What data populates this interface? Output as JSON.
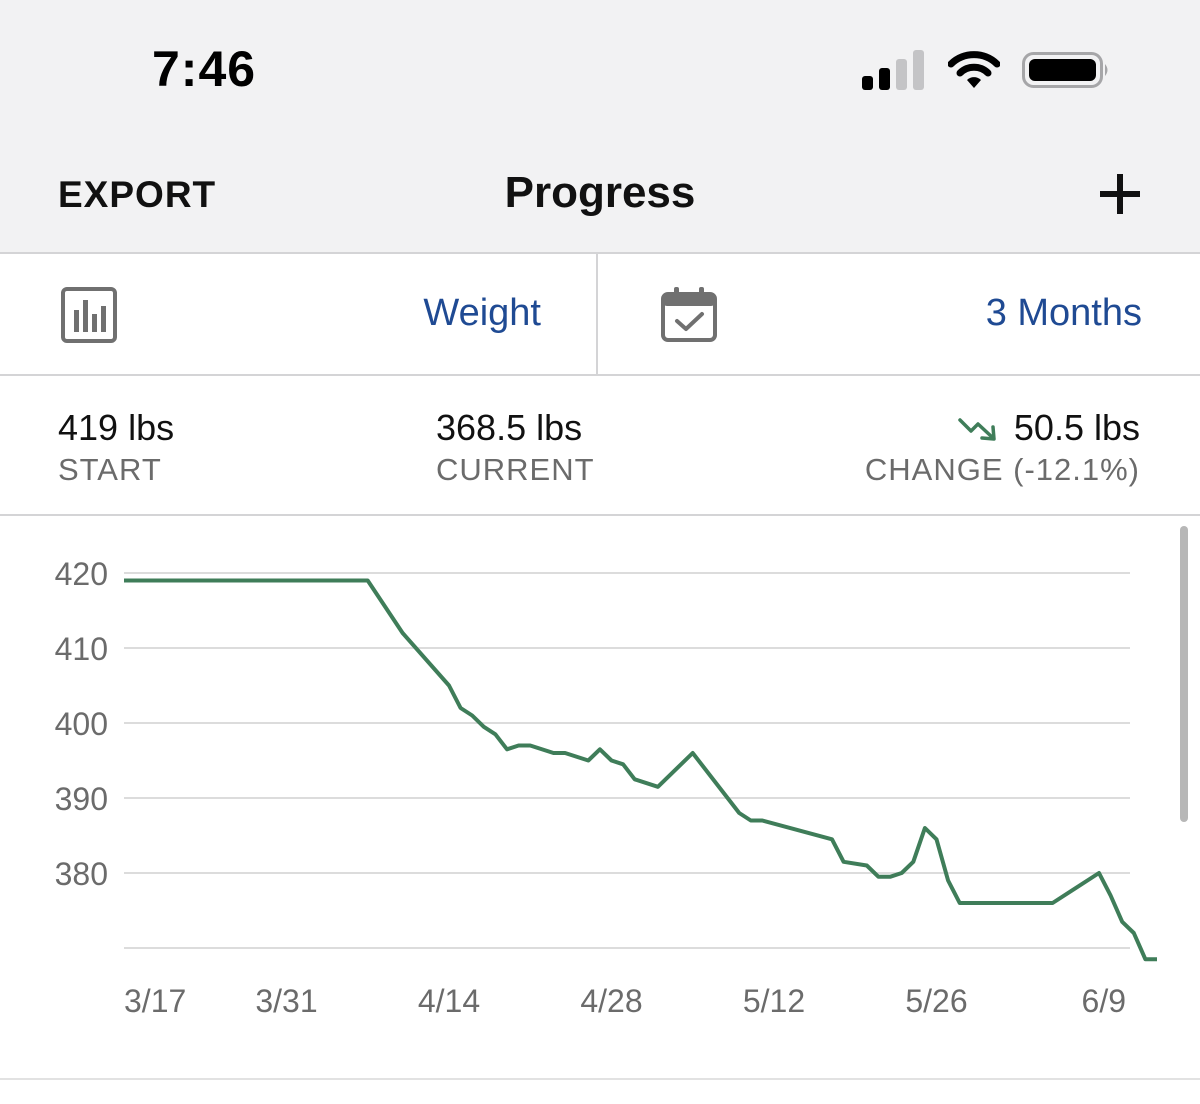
{
  "status_bar": {
    "time": "7:46",
    "icons": [
      "signal-icon",
      "wifi-icon",
      "battery-icon"
    ]
  },
  "nav": {
    "export_label": "EXPORT",
    "title": "Progress",
    "add_icon": "plus-icon"
  },
  "selectors": {
    "metric": {
      "icon": "bar-chart-icon",
      "value": "Weight"
    },
    "range": {
      "icon": "calendar-check-icon",
      "value": "3 Months"
    }
  },
  "stats": {
    "start": {
      "value": "419 lbs",
      "label": "START"
    },
    "current": {
      "value": "368.5 lbs",
      "label": "CURRENT"
    },
    "change": {
      "icon": "trend-down-icon",
      "value": "50.5 lbs",
      "label": "CHANGE (-12.1%)"
    }
  },
  "colors": {
    "accent_blue": "#1f4a93",
    "line_green": "#3f7d59",
    "label_gray": "#6b6b6b",
    "bar_bg": "#f2f2f3"
  },
  "chart_data": {
    "type": "line",
    "ylim": [
      370,
      420
    ],
    "yticks": [
      420,
      410,
      400,
      390,
      380
    ],
    "grid": true,
    "x_ticks": [
      "3/17",
      "3/31",
      "4/14",
      "4/28",
      "5/12",
      "5/26",
      "6/9"
    ],
    "x_tick_days": [
      0,
      14,
      28,
      42,
      56,
      70,
      84
    ],
    "xlim_days": [
      0,
      86.5
    ],
    "series": [
      {
        "points": [
          [
            0,
            419
          ],
          [
            21,
            419
          ],
          [
            24,
            412
          ],
          [
            28,
            405
          ],
          [
            29,
            402
          ],
          [
            30,
            401
          ],
          [
            31,
            399.5
          ],
          [
            32,
            398.5
          ],
          [
            33,
            396.5
          ],
          [
            34,
            397
          ],
          [
            35,
            397
          ],
          [
            37,
            396
          ],
          [
            38,
            396
          ],
          [
            40,
            395
          ],
          [
            41,
            396.5
          ],
          [
            42,
            395
          ],
          [
            43,
            394.5
          ],
          [
            44,
            392.5
          ],
          [
            46,
            391.5
          ],
          [
            49,
            396
          ],
          [
            53,
            388
          ],
          [
            54,
            387
          ],
          [
            55,
            387
          ],
          [
            61,
            384.5
          ],
          [
            62,
            381.5
          ],
          [
            64,
            381
          ],
          [
            65,
            379.5
          ],
          [
            66,
            379.5
          ],
          [
            67,
            380
          ],
          [
            68,
            381.5
          ],
          [
            69,
            386
          ],
          [
            70,
            384.5
          ],
          [
            71,
            379
          ],
          [
            72,
            376
          ],
          [
            80,
            376
          ],
          [
            84,
            380
          ],
          [
            85,
            377
          ],
          [
            86,
            373.5
          ],
          [
            87,
            372
          ],
          [
            88,
            368.5
          ],
          [
            89,
            368.5
          ]
        ]
      }
    ]
  }
}
